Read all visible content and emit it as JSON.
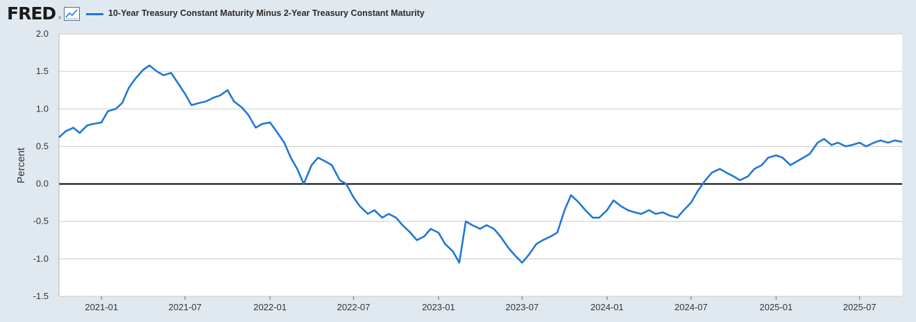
{
  "header": {
    "logo_text": "FRED",
    "logo_reg": "®",
    "legend_label": "10-Year Treasury Constant Maturity Minus 2-Year Treasury Constant Maturity",
    "series_color": "#1f77d4"
  },
  "icons": {
    "graph": "line-graph-icon"
  },
  "chart_data": {
    "type": "line",
    "ylabel": "Percent",
    "ylim": [
      -1.5,
      2.0
    ],
    "yticks": [
      "2.0",
      "1.5",
      "1.0",
      "0.5",
      "0.0",
      "-0.5",
      "-1.0",
      "-1.5"
    ],
    "xlim": [
      "2020-10",
      "2025-10"
    ],
    "xticks": [
      "2021-01",
      "2021-07",
      "2022-01",
      "2022-07",
      "2023-01",
      "2023-07",
      "2024-01",
      "2024-07",
      "2025-01",
      "2025-07"
    ],
    "grid": true,
    "series": [
      {
        "name": "10-Year Treasury Constant Maturity Minus 2-Year Treasury Constant Maturity",
        "color": "#1f77d4",
        "x": [
          "2020-10-01",
          "2020-10-15",
          "2020-11-01",
          "2020-11-15",
          "2020-12-01",
          "2020-12-15",
          "2021-01-01",
          "2021-01-15",
          "2021-02-01",
          "2021-02-15",
          "2021-03-01",
          "2021-03-15",
          "2021-04-01",
          "2021-04-15",
          "2021-05-01",
          "2021-05-15",
          "2021-06-01",
          "2021-06-15",
          "2021-07-01",
          "2021-07-15",
          "2021-08-01",
          "2021-08-15",
          "2021-09-01",
          "2021-09-15",
          "2021-10-01",
          "2021-10-15",
          "2021-11-01",
          "2021-11-15",
          "2021-12-01",
          "2021-12-15",
          "2022-01-01",
          "2022-01-15",
          "2022-02-01",
          "2022-02-15",
          "2022-03-01",
          "2022-03-15",
          "2022-04-01",
          "2022-04-15",
          "2022-05-01",
          "2022-05-15",
          "2022-06-01",
          "2022-06-15",
          "2022-07-01",
          "2022-07-15",
          "2022-08-01",
          "2022-08-15",
          "2022-09-01",
          "2022-09-15",
          "2022-10-01",
          "2022-10-15",
          "2022-11-01",
          "2022-11-15",
          "2022-12-01",
          "2022-12-15",
          "2023-01-01",
          "2023-01-15",
          "2023-02-01",
          "2023-02-15",
          "2023-03-01",
          "2023-03-15",
          "2023-04-01",
          "2023-04-15",
          "2023-05-01",
          "2023-05-15",
          "2023-06-01",
          "2023-06-15",
          "2023-07-01",
          "2023-07-15",
          "2023-08-01",
          "2023-08-15",
          "2023-09-01",
          "2023-09-15",
          "2023-10-01",
          "2023-10-15",
          "2023-11-01",
          "2023-11-15",
          "2023-12-01",
          "2023-12-15",
          "2024-01-01",
          "2024-01-15",
          "2024-02-01",
          "2024-02-15",
          "2024-03-01",
          "2024-03-15",
          "2024-04-01",
          "2024-04-15",
          "2024-05-01",
          "2024-05-15",
          "2024-06-01",
          "2024-06-15",
          "2024-07-01",
          "2024-07-15",
          "2024-08-01",
          "2024-08-15",
          "2024-09-01",
          "2024-09-15",
          "2024-10-01",
          "2024-10-15",
          "2024-11-01",
          "2024-11-15",
          "2024-12-01",
          "2024-12-15",
          "2025-01-01",
          "2025-01-15",
          "2025-02-01",
          "2025-02-15",
          "2025-03-01",
          "2025-03-15",
          "2025-04-01",
          "2025-04-15",
          "2025-05-01",
          "2025-05-15",
          "2025-06-01",
          "2025-06-15",
          "2025-07-01",
          "2025-07-15",
          "2025-08-01",
          "2025-08-15",
          "2025-09-01",
          "2025-09-15",
          "2025-10-01"
        ],
        "values": [
          0.62,
          0.7,
          0.75,
          0.68,
          0.78,
          0.8,
          0.82,
          0.97,
          1.0,
          1.08,
          1.28,
          1.4,
          1.52,
          1.58,
          1.5,
          1.45,
          1.48,
          1.35,
          1.2,
          1.05,
          1.08,
          1.1,
          1.15,
          1.18,
          1.25,
          1.1,
          1.02,
          0.92,
          0.75,
          0.8,
          0.82,
          0.7,
          0.55,
          0.35,
          0.2,
          0.0,
          0.25,
          0.35,
          0.3,
          0.25,
          0.05,
          0.0,
          -0.18,
          -0.3,
          -0.4,
          -0.35,
          -0.45,
          -0.4,
          -0.45,
          -0.55,
          -0.65,
          -0.75,
          -0.7,
          -0.6,
          -0.65,
          -0.8,
          -0.9,
          -1.05,
          -0.5,
          -0.55,
          -0.6,
          -0.55,
          -0.6,
          -0.7,
          -0.85,
          -0.95,
          -1.05,
          -0.95,
          -0.8,
          -0.75,
          -0.7,
          -0.65,
          -0.35,
          -0.15,
          -0.25,
          -0.35,
          -0.45,
          -0.45,
          -0.35,
          -0.22,
          -0.3,
          -0.35,
          -0.38,
          -0.4,
          -0.35,
          -0.4,
          -0.38,
          -0.42,
          -0.45,
          -0.35,
          -0.25,
          -0.1,
          0.05,
          0.15,
          0.2,
          0.15,
          0.1,
          0.05,
          0.1,
          0.2,
          0.25,
          0.35,
          0.38,
          0.35,
          0.25,
          0.3,
          0.35,
          0.4,
          0.55,
          0.6,
          0.52,
          0.55,
          0.5,
          0.52,
          0.55,
          0.5,
          0.55,
          0.58,
          0.55,
          0.58,
          0.56
        ]
      }
    ]
  }
}
